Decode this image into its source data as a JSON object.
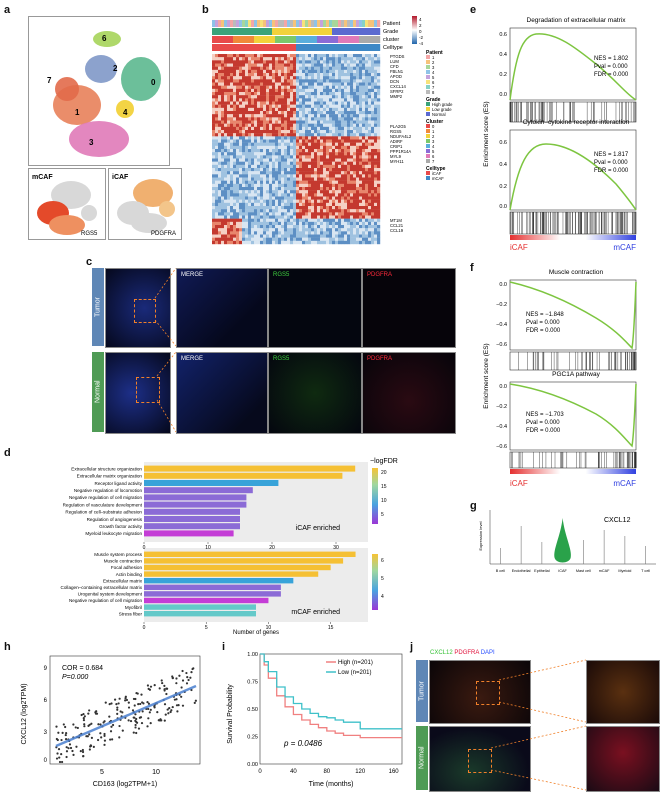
{
  "figure": {
    "panel_labels": [
      "a",
      "b",
      "c",
      "d",
      "e",
      "f",
      "g",
      "h",
      "i",
      "j"
    ]
  },
  "panel_a": {
    "clusters": [
      "0",
      "1",
      "2",
      "3",
      "4",
      "6",
      "7"
    ],
    "inset_left": {
      "label": "mCAF",
      "gene": "RGS5"
    },
    "inset_right": {
      "label": "iCAF",
      "gene": "PDGFRA"
    },
    "colors": {
      "c0": "#5cb88f",
      "c1": "#e8815a",
      "c2": "#7f98c8",
      "c3": "#e07ab8",
      "c4": "#f2d23b",
      "c6": "#a6d45a",
      "c7": "#e26a4a"
    }
  },
  "panel_b": {
    "row_labels": [
      "Patient",
      "Grade",
      "cluster",
      "Celltype"
    ],
    "colorbar_ticks": [
      "4",
      "2",
      "0",
      "-2",
      "-4"
    ],
    "genes_top": [
      "PTGDS",
      "LUM",
      "CFD",
      "FBLN1",
      "APOD",
      "DCN",
      "CXCL14",
      "SFRP2",
      "MMP2"
    ],
    "genes_mid": [
      "PLA2G5",
      "RGS5",
      "NDUFA4L2",
      "ADIRF",
      "CRIP1",
      "PPP1R14A",
      "MYL9",
      "MYH11"
    ],
    "genes_bot": [
      "MT1M",
      "CCL21",
      "CCL19"
    ],
    "legend": {
      "patient_title": "Patient",
      "patient_items": [
        "1",
        "2",
        "3",
        "4",
        "5",
        "6",
        "7",
        "8"
      ],
      "grade_title": "Grade",
      "grade_items": [
        "High grade",
        "Low grade",
        "Normal"
      ],
      "cluster_title": "Cluster",
      "cluster_items": [
        "0",
        "1",
        "2",
        "3",
        "4",
        "5",
        "6",
        "7"
      ],
      "celltype_title": "Celltype",
      "celltype_items": [
        "iCAF",
        "mCAF"
      ]
    }
  },
  "panel_c": {
    "rows": [
      "Tumor",
      "Normal"
    ],
    "channels": [
      "MERGE",
      "RGS5",
      "PDGFRA"
    ]
  },
  "panel_d": {
    "colorbar_title": "−logFDR",
    "top": {
      "caption": "iCAF enriched",
      "terms": [
        "Extracellular structure organization",
        "Extracellular matrix organization",
        "Receptor ligand activity",
        "Negative regulation of locomotion",
        "Negative regulation of cell migration",
        "Regulation of vasculature development",
        "Regulation of cell–substrate adhesion",
        "Regulation of angiogenesis",
        "Growth factor activity",
        "Myeloid leukocyte migration"
      ],
      "values": [
        33,
        31,
        21,
        17,
        16,
        16,
        15,
        15,
        15,
        14
      ],
      "colors": [
        "#f5c034",
        "#f5c034",
        "#38a3d9",
        "#8b6bd6",
        "#8b6bd6",
        "#8b6bd6",
        "#8b6bd6",
        "#8b6bd6",
        "#8b6bd6",
        "#c43dd6"
      ],
      "x_ticks": [
        "0",
        "10",
        "20",
        "30"
      ],
      "cbar_ticks": [
        "20",
        "15",
        "10",
        "5"
      ]
    },
    "bottom": {
      "caption": "mCAF enriched",
      "terms": [
        "Muscle system process",
        "Muscle contraction",
        "Focal adhesion",
        "Actin binding",
        "Extracellular matrix",
        "Collagen–containing extracellular matrix",
        "Urogenital system development",
        "Negative regulation of cell migration",
        "Myofibril",
        "Stress fiber"
      ],
      "values": [
        17,
        16,
        15,
        14,
        12,
        11,
        11,
        10,
        9,
        9
      ],
      "colors": [
        "#f5c034",
        "#f5c034",
        "#f5c034",
        "#f5c034",
        "#38a3d9",
        "#8b6bd6",
        "#8b6bd6",
        "#c43dd6",
        "#64c9c9",
        "#64c9c9"
      ],
      "x_ticks": [
        "0",
        "5",
        "10",
        "15"
      ],
      "cbar_ticks": [
        "6",
        "5",
        "4"
      ],
      "xlabel": "Number of genes"
    }
  },
  "panel_e": {
    "ylabel": "Enrichment score (ES)",
    "plots": [
      {
        "title": "Degradation of extracellular matrix",
        "nes": "NES = 1.802",
        "pval": "Pval = 0.000",
        "fdr": "FDR = 0.000"
      },
      {
        "title": "Cytokin–cytokine receptor interaction",
        "nes": "NES = 1.817",
        "pval": "Pval = 0.000",
        "fdr": "FDR = 0.000"
      }
    ],
    "top_ticks": [
      "0.6",
      "0.4",
      "0.2",
      "0.0"
    ],
    "bottom_ticks": [
      "0.6",
      "0.4",
      "0.2",
      "0.0"
    ],
    "left_end": "iCAF",
    "right_end": "mCAF"
  },
  "panel_f": {
    "ylabel": "Enrichment score (ES)",
    "plots": [
      {
        "title": "Muscle contraction",
        "nes": "NES = −1.848",
        "pval": "Pval = 0.000",
        "fdr": "FDR = 0.000"
      },
      {
        "title": "PGC1A pathway",
        "nes": "NES = −1.703",
        "pval": "Pval = 0.000",
        "fdr": "FDR = 0.000"
      }
    ],
    "top_ticks": [
      "0.0",
      "−0.2",
      "−0.4",
      "−0.6"
    ],
    "bottom_ticks": [
      "0.0",
      "−0.2",
      "−0.4",
      "−0.6"
    ],
    "left_end": "iCAF",
    "right_end": "mCAF"
  },
  "panel_g": {
    "gene": "CXCL12",
    "ylabel": "Expression level",
    "categories": [
      "B cell",
      "Endothelial",
      "Epithelial",
      "iCAF",
      "Mast cell",
      "mCAF",
      "Myeloid",
      "T cell"
    ]
  },
  "panel_h": {
    "cor": "COR = 0.684",
    "p": "P=0.000",
    "xlabel": "CD163 (log2TPM+1)",
    "ylabel": "CXCL12 (log2TPM)",
    "x_ticks": [
      "5",
      "10"
    ],
    "y_ticks": [
      "9",
      "6",
      "3",
      "0"
    ]
  },
  "panel_i": {
    "legend_high": "High (n=201)",
    "legend_low": "Low (n=201)",
    "pvalue": "p = 0.0486",
    "xlabel": "Time (months)",
    "ylabel": "Survival Probability",
    "x_ticks": [
      "0",
      "40",
      "80",
      "120",
      "160"
    ],
    "y_ticks": [
      "1.00",
      "0.75",
      "0.50",
      "0.25",
      "0.00"
    ],
    "colors": {
      "high": "#f08080",
      "low": "#3fc1c9"
    }
  },
  "panel_j": {
    "markers": [
      "CXCL12",
      "PDGFRA",
      "DAPI"
    ],
    "marker_colors": [
      "#36c236",
      "#e0103a",
      "#2a50ff"
    ],
    "rows": [
      "Tumor",
      "Normal"
    ]
  },
  "chart_data": [
    {
      "type": "bar",
      "title": "iCAF enriched",
      "categories": [
        "Extracellular structure organization",
        "Extracellular matrix organization",
        "Receptor ligand activity",
        "Negative regulation of locomotion",
        "Negative regulation of cell migration",
        "Regulation of vasculature development",
        "Regulation of cell–substrate adhesion",
        "Regulation of angiogenesis",
        "Growth factor activity",
        "Myeloid leukocyte migration"
      ],
      "values": [
        33,
        31,
        21,
        17,
        16,
        16,
        15,
        15,
        15,
        14
      ],
      "xlim": [
        0,
        35
      ]
    },
    {
      "type": "bar",
      "title": "mCAF enriched",
      "categories": [
        "Muscle system process",
        "Muscle contraction",
        "Focal adhesion",
        "Actin binding",
        "Extracellular matrix",
        "Collagen–containing extracellular matrix",
        "Urogenital system development",
        "Negative regulation of cell migration",
        "Myofibril",
        "Stress fiber"
      ],
      "values": [
        17,
        16,
        15,
        14,
        12,
        11,
        11,
        10,
        9,
        9
      ],
      "xlim": [
        0,
        18
      ],
      "xlabel": "Number of genes"
    },
    {
      "type": "line",
      "series": [
        {
          "name": "High (n=201)",
          "x": [
            0,
            5,
            10,
            20,
            30,
            40,
            50,
            60,
            70,
            80,
            90,
            100,
            120,
            140,
            160
          ],
          "values": [
            1.0,
            0.9,
            0.78,
            0.62,
            0.52,
            0.45,
            0.4,
            0.36,
            0.33,
            0.3,
            0.28,
            0.26,
            0.24,
            0.24,
            0.24
          ]
        },
        {
          "name": "Low (n=201)",
          "x": [
            0,
            5,
            10,
            20,
            30,
            40,
            50,
            60,
            70,
            80,
            90,
            100,
            120,
            140,
            160
          ],
          "values": [
            1.0,
            0.93,
            0.84,
            0.7,
            0.61,
            0.55,
            0.5,
            0.46,
            0.43,
            0.42,
            0.4,
            0.38,
            0.32,
            0.32,
            0.32
          ]
        }
      ],
      "xlabel": "Time (months)",
      "ylabel": "Survival Probability",
      "xlim": [
        0,
        170
      ],
      "ylim": [
        0,
        1
      ]
    }
  ]
}
